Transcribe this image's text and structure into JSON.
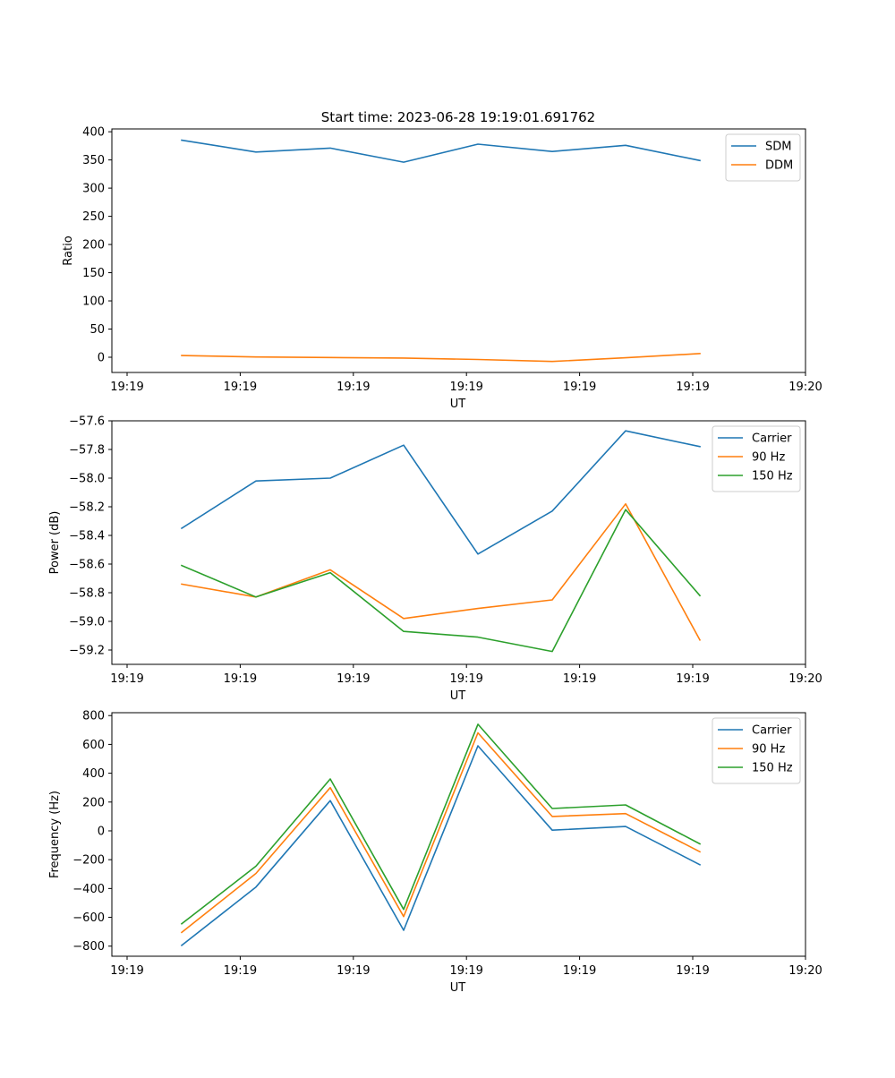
{
  "figure": {
    "title": "Start time: 2023-06-28 19:19:01.691762"
  },
  "chart_data": [
    {
      "type": "line",
      "title": "Start time: 2023-06-28 19:19:01.691762",
      "xlabel": "UT",
      "ylabel": "Ratio",
      "x_tick_labels": [
        "19:19",
        "19:19",
        "19:19",
        "19:19",
        "19:19",
        "19:19",
        "19:20"
      ],
      "ylim": [
        -27,
        405
      ],
      "y_ticks": [
        0,
        50,
        100,
        150,
        200,
        250,
        300,
        350,
        400
      ],
      "y_tick_labels": [
        "0",
        "50",
        "100",
        "150",
        "200",
        "250",
        "300",
        "350",
        "400"
      ],
      "legend_position": "top-right",
      "grid": false,
      "series": [
        {
          "name": "SDM",
          "color": "#1f77b4",
          "values": [
            385,
            364,
            371,
            346,
            378,
            365,
            376,
            349
          ]
        },
        {
          "name": "DDM",
          "color": "#ff7f0e",
          "values": [
            3,
            0.5,
            -0.5,
            -1.5,
            -4,
            -7.5,
            -1,
            6.5
          ]
        }
      ]
    },
    {
      "type": "line",
      "title": "",
      "xlabel": "UT",
      "ylabel": "Power (dB)",
      "x_tick_labels": [
        "19:19",
        "19:19",
        "19:19",
        "19:19",
        "19:19",
        "19:19",
        "19:20"
      ],
      "ylim": [
        -59.3,
        -57.6
      ],
      "y_ticks": [
        -59.2,
        -59.0,
        -58.8,
        -58.6,
        -58.4,
        -58.2,
        -58.0,
        -57.8,
        -57.6
      ],
      "y_tick_labels": [
        "−59.2",
        "−59.0",
        "−58.8",
        "−58.6",
        "−58.4",
        "−58.2",
        "−58.0",
        "−57.8",
        "−57.6"
      ],
      "legend_position": "top-right",
      "grid": false,
      "series": [
        {
          "name": "Carrier",
          "color": "#1f77b4",
          "values": [
            -58.35,
            -58.02,
            -58.0,
            -57.77,
            -58.53,
            -58.23,
            -57.67,
            -57.78
          ]
        },
        {
          "name": "90 Hz",
          "color": "#ff7f0e",
          "values": [
            -58.74,
            -58.83,
            -58.64,
            -58.98,
            -58.91,
            -58.85,
            -58.18,
            -59.13
          ]
        },
        {
          "name": "150 Hz",
          "color": "#2ca02c",
          "values": [
            -58.61,
            -58.83,
            -58.66,
            -59.07,
            -59.11,
            -59.21,
            -58.22,
            -58.82
          ]
        }
      ]
    },
    {
      "type": "line",
      "title": "",
      "xlabel": "UT",
      "ylabel": "Frequency (Hz)",
      "x_tick_labels": [
        "19:19",
        "19:19",
        "19:19",
        "19:19",
        "19:19",
        "19:19",
        "19:20"
      ],
      "ylim": [
        -870,
        820
      ],
      "y_ticks": [
        -800,
        -600,
        -400,
        -200,
        0,
        200,
        400,
        600,
        800
      ],
      "y_tick_labels": [
        "−800",
        "−600",
        "−400",
        "−200",
        "0",
        "200",
        "400",
        "600",
        "800"
      ],
      "legend_position": "top-right",
      "grid": false,
      "series": [
        {
          "name": "Carrier",
          "color": "#1f77b4",
          "values": [
            -795,
            -390,
            210,
            -690,
            590,
            5,
            30,
            -235
          ]
        },
        {
          "name": "90 Hz",
          "color": "#ff7f0e",
          "values": [
            -705,
            -295,
            300,
            -595,
            680,
            100,
            120,
            -145
          ]
        },
        {
          "name": "150 Hz",
          "color": "#2ca02c",
          "values": [
            -645,
            -245,
            360,
            -545,
            740,
            155,
            180,
            -90
          ]
        }
      ]
    }
  ]
}
